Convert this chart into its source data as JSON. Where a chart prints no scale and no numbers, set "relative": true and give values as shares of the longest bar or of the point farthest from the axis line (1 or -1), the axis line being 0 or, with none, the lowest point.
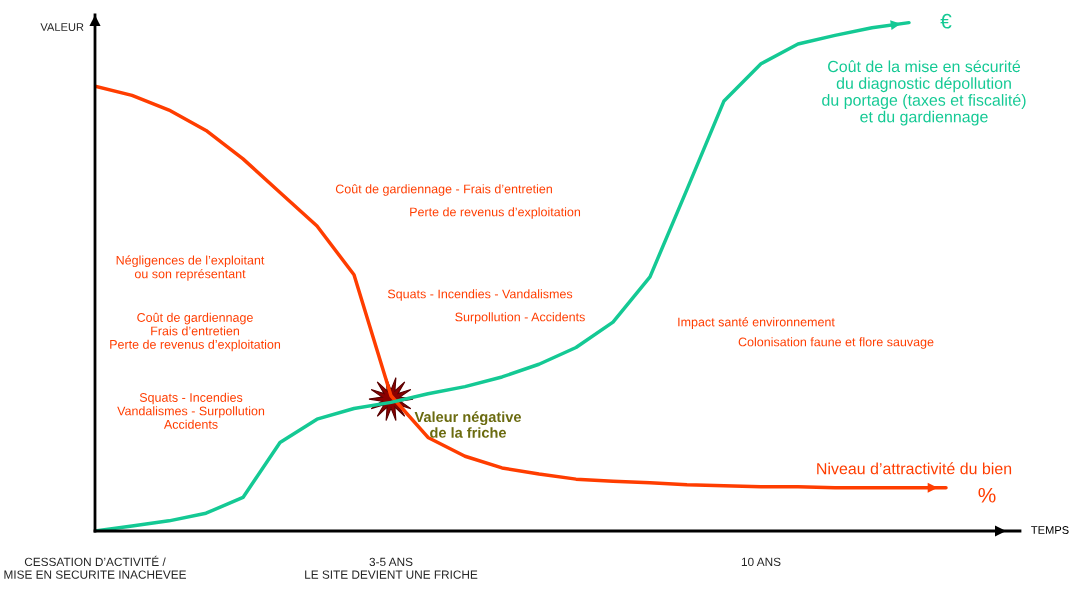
{
  "chart_data": {
    "type": "line",
    "relative": true,
    "ylabel": "VALEUR",
    "categories": [
      "CESSATION D’ACTIVITÉ /\nMISE EN SECURITE INACHEVEE",
      null,
      null,
      null,
      null,
      null,
      null,
      null,
      "3-5 ANS\nLE SITE DEVIENT UNE FRICHE",
      null,
      null,
      null,
      null,
      null,
      null,
      null,
      null,
      null,
      "10 ANS",
      null,
      null,
      null,
      null,
      null
    ],
    "series": [
      {
        "name": "Niveau d’attractivité du bien",
        "color": "#ff3d00",
        "values": [
          0.875,
          0.857,
          0.828,
          0.788,
          0.732,
          0.666,
          0.6,
          0.504,
          0.266,
          0.184,
          0.147,
          0.124,
          0.112,
          0.102,
          0.098,
          0.095,
          0.091,
          0.089,
          0.087,
          0.087,
          0.085,
          0.085,
          0.085,
          0.085
        ]
      },
      {
        "name": "Coût de la mise en sécurité\ndu diagnostic dépollution\ndu portage (taxes et fiscalité)\net du gardiennage",
        "color": "#14c994",
        "values": [
          0,
          0.01,
          0.02,
          0.035,
          0.066,
          0.174,
          0.22,
          0.241,
          0.253,
          0.27,
          0.284,
          0.303,
          0.328,
          0.361,
          0.411,
          0.5,
          0.672,
          0.846,
          0.919,
          0.958,
          0.975,
          0.99,
          1,
          null
        ]
      }
    ],
    "annotations": [
      "Négligences de l’exploitant\nou son représentant",
      "Coût de gardiennage\nFrais d’entretien\nPerte de revenus d’exploitation",
      "Squats - Incendies\nVandalismes - Surpollution\nAccidents",
      "Coût de gardiennage - Frais d’entretien",
      "Perte de revenus d’exploitation",
      "Squats - Incendies - Vandalismes",
      "Surpollution - Accidents",
      "Impact santé environnement",
      "Colonisation faune et flore sauvage",
      "Valeur négative\nde la friche",
      "€",
      "%",
      "TEMPS"
    ],
    "legend": false
  }
}
